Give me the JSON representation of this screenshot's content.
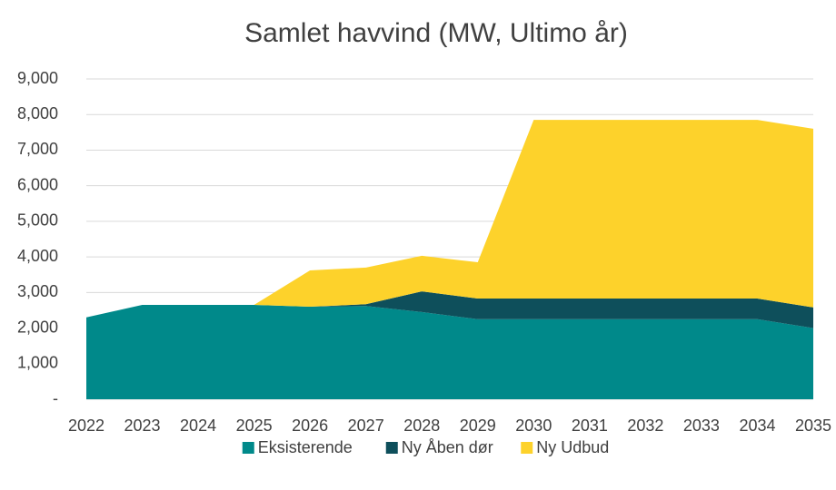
{
  "chart_data": {
    "type": "stacked_area",
    "title": "Samlet havvind (MW, Ultimo år)",
    "categories": [
      "2022",
      "2023",
      "2024",
      "2025",
      "2026",
      "2027",
      "2028",
      "2029",
      "2030",
      "2031",
      "2032",
      "2033",
      "2034",
      "2035"
    ],
    "series": [
      {
        "name": "Eksisterende",
        "color": "#00898a",
        "values": [
          2300,
          2650,
          2650,
          2650,
          2600,
          2620,
          2450,
          2250,
          2250,
          2250,
          2250,
          2250,
          2250,
          2000
        ]
      },
      {
        "name": "Ny Åben dør",
        "color": "#0e4f5b",
        "values": [
          0,
          0,
          0,
          0,
          0,
          50,
          580,
          580,
          580,
          580,
          580,
          580,
          580,
          580
        ]
      },
      {
        "name": "Ny Udbud",
        "color": "#fdd22b",
        "values": [
          0,
          0,
          0,
          0,
          1020,
          1030,
          1000,
          1020,
          5020,
          5020,
          5020,
          5020,
          5020,
          5020
        ]
      }
    ],
    "ylim": [
      0,
      9000
    ],
    "yticks": [
      {
        "value": 0,
        "label": "-"
      },
      {
        "value": 1000,
        "label": "1,000"
      },
      {
        "value": 2000,
        "label": "2,000"
      },
      {
        "value": 3000,
        "label": "3,000"
      },
      {
        "value": 4000,
        "label": "4,000"
      },
      {
        "value": 5000,
        "label": "5,000"
      },
      {
        "value": 6000,
        "label": "6,000"
      },
      {
        "value": 7000,
        "label": "7,000"
      },
      {
        "value": 8000,
        "label": "8,000"
      },
      {
        "value": 9000,
        "label": "9,000"
      }
    ],
    "grid": true,
    "legend": "bottom"
  }
}
